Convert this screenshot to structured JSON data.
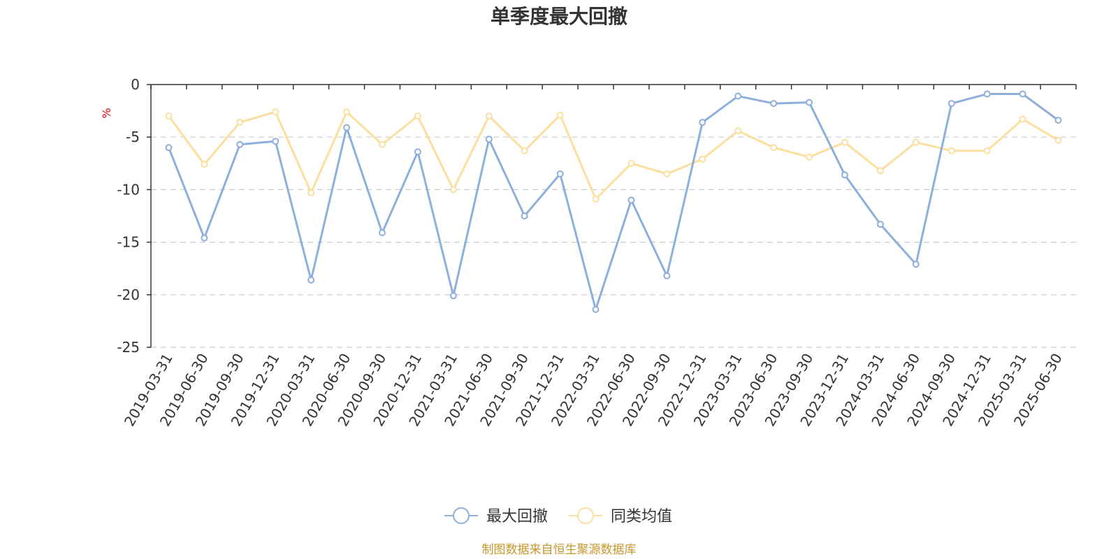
{
  "chart_data": {
    "type": "line",
    "title": "单季度最大回撤",
    "ylabel": "%",
    "ylim": [
      -25,
      0
    ],
    "yticks": [
      0,
      -5,
      -10,
      -15,
      -20,
      -25
    ],
    "grid": true,
    "legend_position": "bottom-center",
    "categories": [
      "2019-03-31",
      "2019-06-30",
      "2019-09-30",
      "2019-12-31",
      "2020-03-31",
      "2020-06-30",
      "2020-09-30",
      "2020-12-31",
      "2021-03-31",
      "2021-06-30",
      "2021-09-30",
      "2021-12-31",
      "2022-03-31",
      "2022-06-30",
      "2022-09-30",
      "2022-12-31",
      "2023-03-31",
      "2023-06-30",
      "2023-09-30",
      "2023-12-31",
      "2024-03-31",
      "2024-06-30",
      "2024-09-30",
      "2024-12-31",
      "2025-03-31",
      "2025-06-30"
    ],
    "series": [
      {
        "name": "最大回撤",
        "color": "#8eaedb",
        "values": [
          -6.0,
          -14.6,
          -5.7,
          -5.4,
          -18.6,
          -4.1,
          -14.1,
          -6.4,
          -20.1,
          -5.2,
          -12.5,
          -8.5,
          -21.4,
          -11.0,
          -18.2,
          -3.6,
          -1.1,
          -1.8,
          -1.7,
          -8.6,
          -13.3,
          -17.1,
          -1.8,
          -0.9,
          -0.9,
          -3.4
        ]
      },
      {
        "name": "同类均值",
        "color": "#fcdf9e",
        "values": [
          -3.0,
          -7.6,
          -3.6,
          -2.6,
          -10.3,
          -2.6,
          -5.7,
          -3.0,
          -10.0,
          -3.0,
          -6.3,
          -2.9,
          -10.9,
          -7.5,
          -8.5,
          -7.1,
          -4.4,
          -6.0,
          -6.9,
          -5.5,
          -8.2,
          -5.5,
          -6.3,
          -6.3,
          -3.3,
          -5.3
        ]
      }
    ],
    "source_text": "制图数据来自恒生聚源数据库",
    "source_color": "#c9962b",
    "unit_color": "#e60000"
  }
}
